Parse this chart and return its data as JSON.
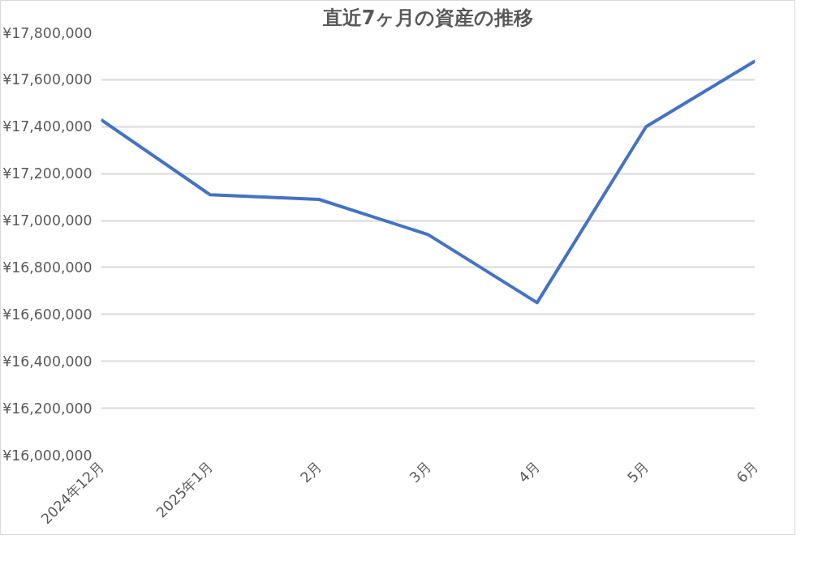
{
  "chart_data": {
    "type": "line",
    "title": "直近7ヶ月の資産の推移",
    "categories": [
      "2024年12月",
      "2025年1月",
      "2月",
      "3月",
      "4月",
      "5月",
      "6月"
    ],
    "series": [
      {
        "color": "#4472c4",
        "values": [
          17430000,
          17110000,
          17090000,
          16940000,
          16650000,
          17400000,
          17680000
        ]
      }
    ],
    "ylim": [
      16000000,
      17800000
    ],
    "yticks": [
      {
        "value": 16000000,
        "label": "¥16,000,000"
      },
      {
        "value": 16200000,
        "label": "¥16,200,000"
      },
      {
        "value": 16400000,
        "label": "¥16,400,000"
      },
      {
        "value": 16600000,
        "label": "¥16,600,000"
      },
      {
        "value": 16800000,
        "label": "¥16,800,000"
      },
      {
        "value": 17000000,
        "label": "¥17,000,000"
      },
      {
        "value": 17200000,
        "label": "¥17,200,000"
      },
      {
        "value": 17400000,
        "label": "¥17,400,000"
      },
      {
        "value": 17600000,
        "label": "¥17,600,000"
      },
      {
        "value": 17800000,
        "label": "¥17,800,000"
      }
    ],
    "grid": "y",
    "marker": "none",
    "line_style": "solid"
  }
}
